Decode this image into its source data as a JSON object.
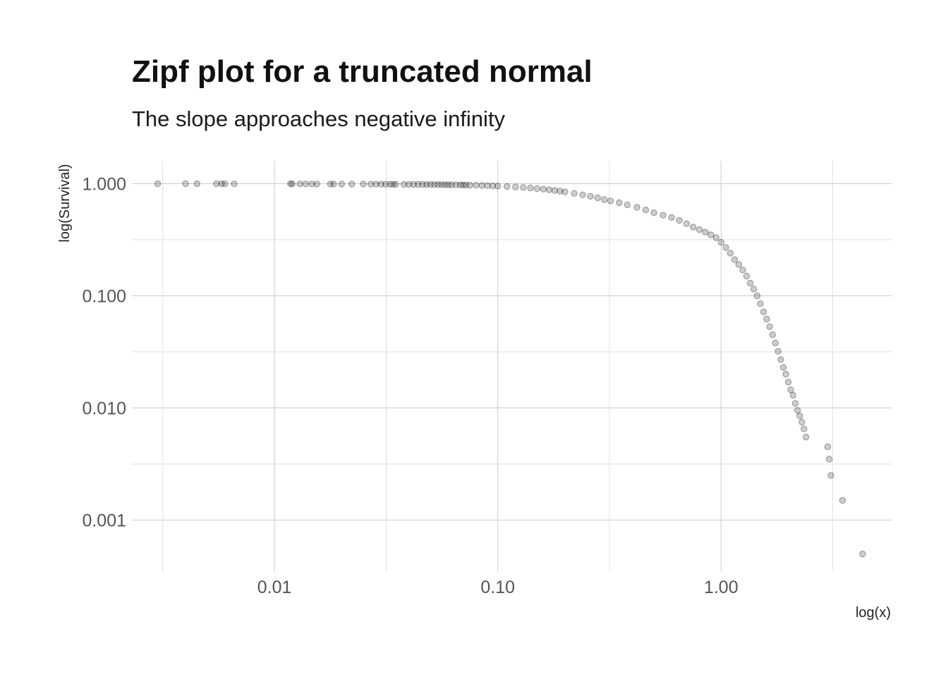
{
  "chart_data": {
    "type": "scatter",
    "title": "Zipf plot for a truncated normal",
    "subtitle": "The slope approaches negative infinity",
    "xlabel": "log(x)",
    "ylabel": "log(Survival)",
    "x_scale": "log10",
    "y_scale": "log10",
    "xlim": [
      0.0023,
      5.8
    ],
    "ylim": [
      0.00035,
      1.6
    ],
    "x_ticks": [
      {
        "value": 0.01,
        "label": "0.01"
      },
      {
        "value": 0.1,
        "label": "0.10"
      },
      {
        "value": 1.0,
        "label": "1.00"
      }
    ],
    "y_ticks": [
      {
        "value": 0.001,
        "label": "0.001"
      },
      {
        "value": 0.01,
        "label": "0.010"
      },
      {
        "value": 0.1,
        "label": "0.100"
      },
      {
        "value": 1.0,
        "label": "1.000"
      }
    ],
    "grid": true,
    "legend": "none",
    "point_color": "#000000",
    "point_alpha": 0.2,
    "series": [
      {
        "points": [
          [
            0.003,
            1.0
          ],
          [
            0.004,
            0.999
          ],
          [
            0.0045,
            0.999
          ],
          [
            0.0055,
            0.998
          ],
          [
            0.0058,
            0.998
          ],
          [
            0.006,
            0.998
          ],
          [
            0.0066,
            0.997
          ],
          [
            0.0118,
            0.997
          ],
          [
            0.012,
            0.996
          ],
          [
            0.013,
            0.996
          ],
          [
            0.0138,
            0.995
          ],
          [
            0.0147,
            0.995
          ],
          [
            0.0155,
            0.994
          ],
          [
            0.0178,
            0.994
          ],
          [
            0.0184,
            0.993
          ],
          [
            0.02,
            0.993
          ],
          [
            0.0222,
            0.992
          ],
          [
            0.025,
            0.992
          ],
          [
            0.027,
            0.991
          ],
          [
            0.0285,
            0.99
          ],
          [
            0.03,
            0.99
          ],
          [
            0.0315,
            0.989
          ],
          [
            0.033,
            0.989
          ],
          [
            0.034,
            0.988
          ],
          [
            0.035,
            0.988
          ],
          [
            0.038,
            0.987
          ],
          [
            0.04,
            0.987
          ],
          [
            0.042,
            0.986
          ],
          [
            0.044,
            0.985
          ],
          [
            0.046,
            0.985
          ],
          [
            0.048,
            0.984
          ],
          [
            0.05,
            0.983
          ],
          [
            0.052,
            0.982
          ],
          [
            0.054,
            0.982
          ],
          [
            0.056,
            0.981
          ],
          [
            0.058,
            0.98
          ],
          [
            0.06,
            0.979
          ],
          [
            0.062,
            0.978
          ],
          [
            0.065,
            0.977
          ],
          [
            0.068,
            0.975
          ],
          [
            0.07,
            0.974
          ],
          [
            0.072,
            0.973
          ],
          [
            0.075,
            0.971
          ],
          [
            0.08,
            0.968
          ],
          [
            0.085,
            0.965
          ],
          [
            0.09,
            0.961
          ],
          [
            0.095,
            0.957
          ],
          [
            0.1,
            0.953
          ],
          [
            0.11,
            0.945
          ],
          [
            0.12,
            0.936
          ],
          [
            0.13,
            0.926
          ],
          [
            0.14,
            0.916
          ],
          [
            0.15,
            0.905
          ],
          [
            0.16,
            0.894
          ],
          [
            0.17,
            0.882
          ],
          [
            0.18,
            0.87
          ],
          [
            0.19,
            0.858
          ],
          [
            0.2,
            0.845
          ],
          [
            0.22,
            0.82
          ],
          [
            0.24,
            0.795
          ],
          [
            0.26,
            0.772
          ],
          [
            0.28,
            0.748
          ],
          [
            0.3,
            0.722
          ],
          [
            0.32,
            0.702
          ],
          [
            0.35,
            0.676
          ],
          [
            0.38,
            0.648
          ],
          [
            0.42,
            0.615
          ],
          [
            0.46,
            0.583
          ],
          [
            0.5,
            0.55
          ],
          [
            0.55,
            0.523
          ],
          [
            0.6,
            0.5
          ],
          [
            0.65,
            0.47
          ],
          [
            0.7,
            0.44
          ],
          [
            0.75,
            0.41
          ],
          [
            0.8,
            0.39
          ],
          [
            0.85,
            0.37
          ],
          [
            0.9,
            0.35
          ],
          [
            0.95,
            0.33
          ],
          [
            1.0,
            0.3
          ],
          [
            1.05,
            0.27
          ],
          [
            1.1,
            0.24
          ],
          [
            1.15,
            0.21
          ],
          [
            1.2,
            0.19
          ],
          [
            1.25,
            0.17
          ],
          [
            1.3,
            0.15
          ],
          [
            1.35,
            0.13
          ],
          [
            1.4,
            0.115
          ],
          [
            1.45,
            0.1
          ],
          [
            1.5,
            0.085
          ],
          [
            1.55,
            0.072
          ],
          [
            1.6,
            0.062
          ],
          [
            1.65,
            0.053
          ],
          [
            1.7,
            0.045
          ],
          [
            1.75,
            0.038
          ],
          [
            1.8,
            0.032
          ],
          [
            1.85,
            0.027
          ],
          [
            1.9,
            0.023
          ],
          [
            1.95,
            0.02
          ],
          [
            2.0,
            0.017
          ],
          [
            2.05,
            0.0145
          ],
          [
            2.1,
            0.013
          ],
          [
            2.15,
            0.011
          ],
          [
            2.2,
            0.0095
          ],
          [
            2.25,
            0.0085
          ],
          [
            2.3,
            0.0075
          ],
          [
            2.35,
            0.0065
          ],
          [
            2.4,
            0.0055
          ],
          [
            3.0,
            0.0045
          ],
          [
            3.05,
            0.0035
          ],
          [
            3.1,
            0.0025
          ],
          [
            3.5,
            0.0015
          ],
          [
            4.3,
            0.0005
          ]
        ]
      }
    ]
  }
}
